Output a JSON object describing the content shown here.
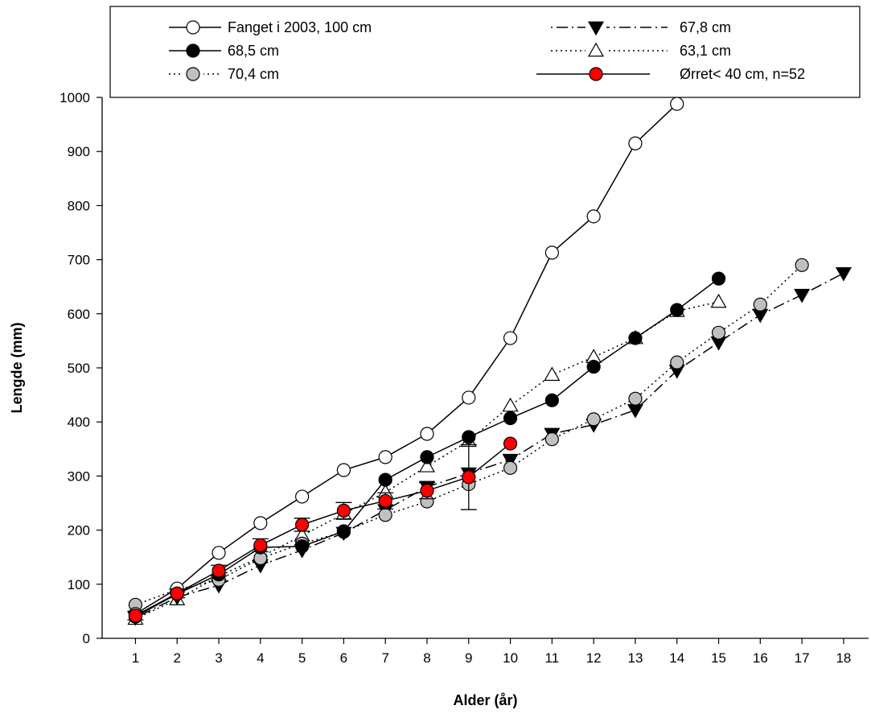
{
  "chart_data": {
    "type": "line",
    "xlabel": "Alder (år)",
    "ylabel": "Lengde (mm)",
    "xlim": [
      0.2,
      18.6
    ],
    "ylim": [
      0,
      1000
    ],
    "x_ticks": [
      1,
      2,
      3,
      4,
      5,
      6,
      7,
      8,
      9,
      10,
      11,
      12,
      13,
      14,
      15,
      16,
      17,
      18
    ],
    "y_ticks": [
      0,
      100,
      200,
      300,
      400,
      500,
      600,
      700,
      800,
      900,
      1000
    ],
    "grid": false,
    "legend_position": "top",
    "series": [
      {
        "name": "Fanget i 2003, 100 cm",
        "marker": "circle",
        "fill": "#ffffff",
        "line": "solid",
        "x": [
          1,
          2,
          3,
          4,
          5,
          6,
          7,
          8,
          9,
          10,
          11,
          12,
          13,
          14
        ],
        "y": [
          45,
          92,
          158,
          213,
          262,
          311,
          335,
          378,
          445,
          555,
          713,
          780,
          915,
          988
        ]
      },
      {
        "name": "68,5 cm",
        "marker": "circle",
        "fill": "#000000",
        "line": "solid",
        "x": [
          1,
          2,
          3,
          4,
          5,
          6,
          7,
          8,
          9,
          10,
          11,
          12,
          13,
          14,
          15
        ],
        "y": [
          40,
          82,
          118,
          168,
          170,
          198,
          293,
          335,
          372,
          407,
          440,
          502,
          555,
          607,
          665
        ]
      },
      {
        "name": "70,4 cm",
        "marker": "circle",
        "fill": "#c0c0c0",
        "line": "dotted",
        "x": [
          1,
          2,
          3,
          4,
          5,
          6,
          7,
          8,
          9,
          10,
          11,
          12,
          13,
          14,
          15,
          16,
          17
        ],
        "y": [
          62,
          90,
          108,
          148,
          175,
          197,
          228,
          253,
          285,
          315,
          368,
          405,
          443,
          510,
          565,
          617,
          690
        ]
      },
      {
        "name": "67,8 cm",
        "marker": "triangle-down",
        "fill": "#000000",
        "line": "dash-dot",
        "x": [
          1,
          2,
          3,
          4,
          5,
          6,
          7,
          8,
          9,
          10,
          11,
          12,
          13,
          14,
          15,
          16,
          17,
          18
        ],
        "y": [
          38,
          76,
          98,
          135,
          163,
          195,
          237,
          280,
          305,
          330,
          378,
          395,
          422,
          495,
          547,
          598,
          635,
          675
        ]
      },
      {
        "name": "63,1 cm",
        "marker": "triangle-up",
        "fill": "#ffffff",
        "line": "dotted",
        "x": [
          1,
          2,
          3,
          4,
          5,
          6,
          7,
          8,
          9,
          10,
          11,
          12,
          13,
          14,
          15
        ],
        "y": [
          36,
          72,
          115,
          150,
          190,
          230,
          270,
          318,
          365,
          430,
          487,
          520,
          555,
          605,
          622
        ]
      },
      {
        "name": "Ørret< 40 cm, n=52",
        "marker": "circle",
        "fill": "#ff0000",
        "line": "solid",
        "x": [
          1,
          2,
          3,
          4,
          5,
          6,
          7,
          8,
          9,
          10
        ],
        "y": [
          42,
          83,
          125,
          172,
          210,
          236,
          254,
          273,
          298,
          360
        ],
        "error": [
          8,
          8,
          10,
          12,
          12,
          15,
          15,
          15,
          60,
          0
        ]
      }
    ]
  }
}
